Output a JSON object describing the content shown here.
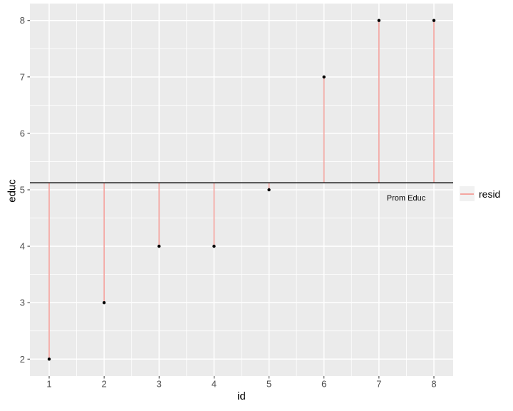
{
  "figure": {
    "xlabel": "id",
    "ylabel": "educ",
    "annotation": "Prom Educ",
    "legend": {
      "label": "resid"
    }
  },
  "chart_data": {
    "type": "scatter",
    "subtype": "lollipop-residuals",
    "title": "",
    "xlabel": "id",
    "ylabel": "educ",
    "x": [
      1,
      2,
      3,
      4,
      5,
      6,
      7,
      8
    ],
    "y": [
      2,
      3,
      4,
      4,
      5,
      7,
      8,
      8
    ],
    "mean_line": 5.125,
    "residuals": [
      -3.125,
      -2.125,
      -1.125,
      -1.125,
      -0.125,
      1.875,
      2.875,
      2.875
    ],
    "x_ticks": [
      1,
      2,
      3,
      4,
      5,
      6,
      7,
      8
    ],
    "y_ticks": [
      2,
      3,
      4,
      5,
      6,
      7,
      8
    ],
    "xlim": [
      0.65,
      8.35
    ],
    "ylim": [
      1.7,
      8.3
    ],
    "grid": true,
    "legend_position": "right",
    "legend_entries": [
      {
        "label": "resid",
        "color": "#F4A6A1",
        "glyph": "line"
      }
    ],
    "annotation": {
      "text": "Prom Educ",
      "x": 7.49,
      "y": 4.85
    },
    "colors": {
      "panel_bg": "#EBEBEB",
      "grid_major": "#FFFFFF",
      "grid_minor": "#FFFFFF",
      "stem": "#F4A6A1",
      "point": "#000000",
      "mean_line": "#1A1A1A",
      "tick_mark": "#333333",
      "tick_text": "#4D4D4D",
      "axis_title": "#000000"
    }
  }
}
